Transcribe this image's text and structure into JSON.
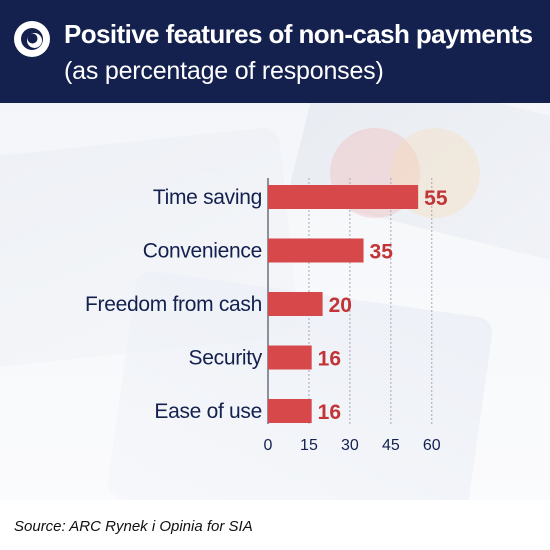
{
  "header": {
    "title": "Positive features of non-cash payments",
    "subtitle": "(as percentage of responses)"
  },
  "footer": {
    "source": "Source: ARC Rynek i Opinia for SIA"
  },
  "colors": {
    "header_bg": "#14214f",
    "bar": "#d7484a",
    "value_label": "#c23436",
    "category_label": "#14214f"
  },
  "chart_data": {
    "type": "bar",
    "orientation": "horizontal",
    "title": "Positive features of non-cash payments",
    "subtitle": "(as percentage of responses)",
    "categories": [
      "Time saving",
      "Convenience",
      "Freedom from cash",
      "Security",
      "Ease of use"
    ],
    "values": [
      55,
      35,
      20,
      16,
      16
    ],
    "xlabel": "",
    "ylabel": "",
    "xlim": [
      0,
      60
    ],
    "xticks": [
      0,
      15,
      30,
      45,
      60
    ],
    "grid": true,
    "legend": "none"
  }
}
